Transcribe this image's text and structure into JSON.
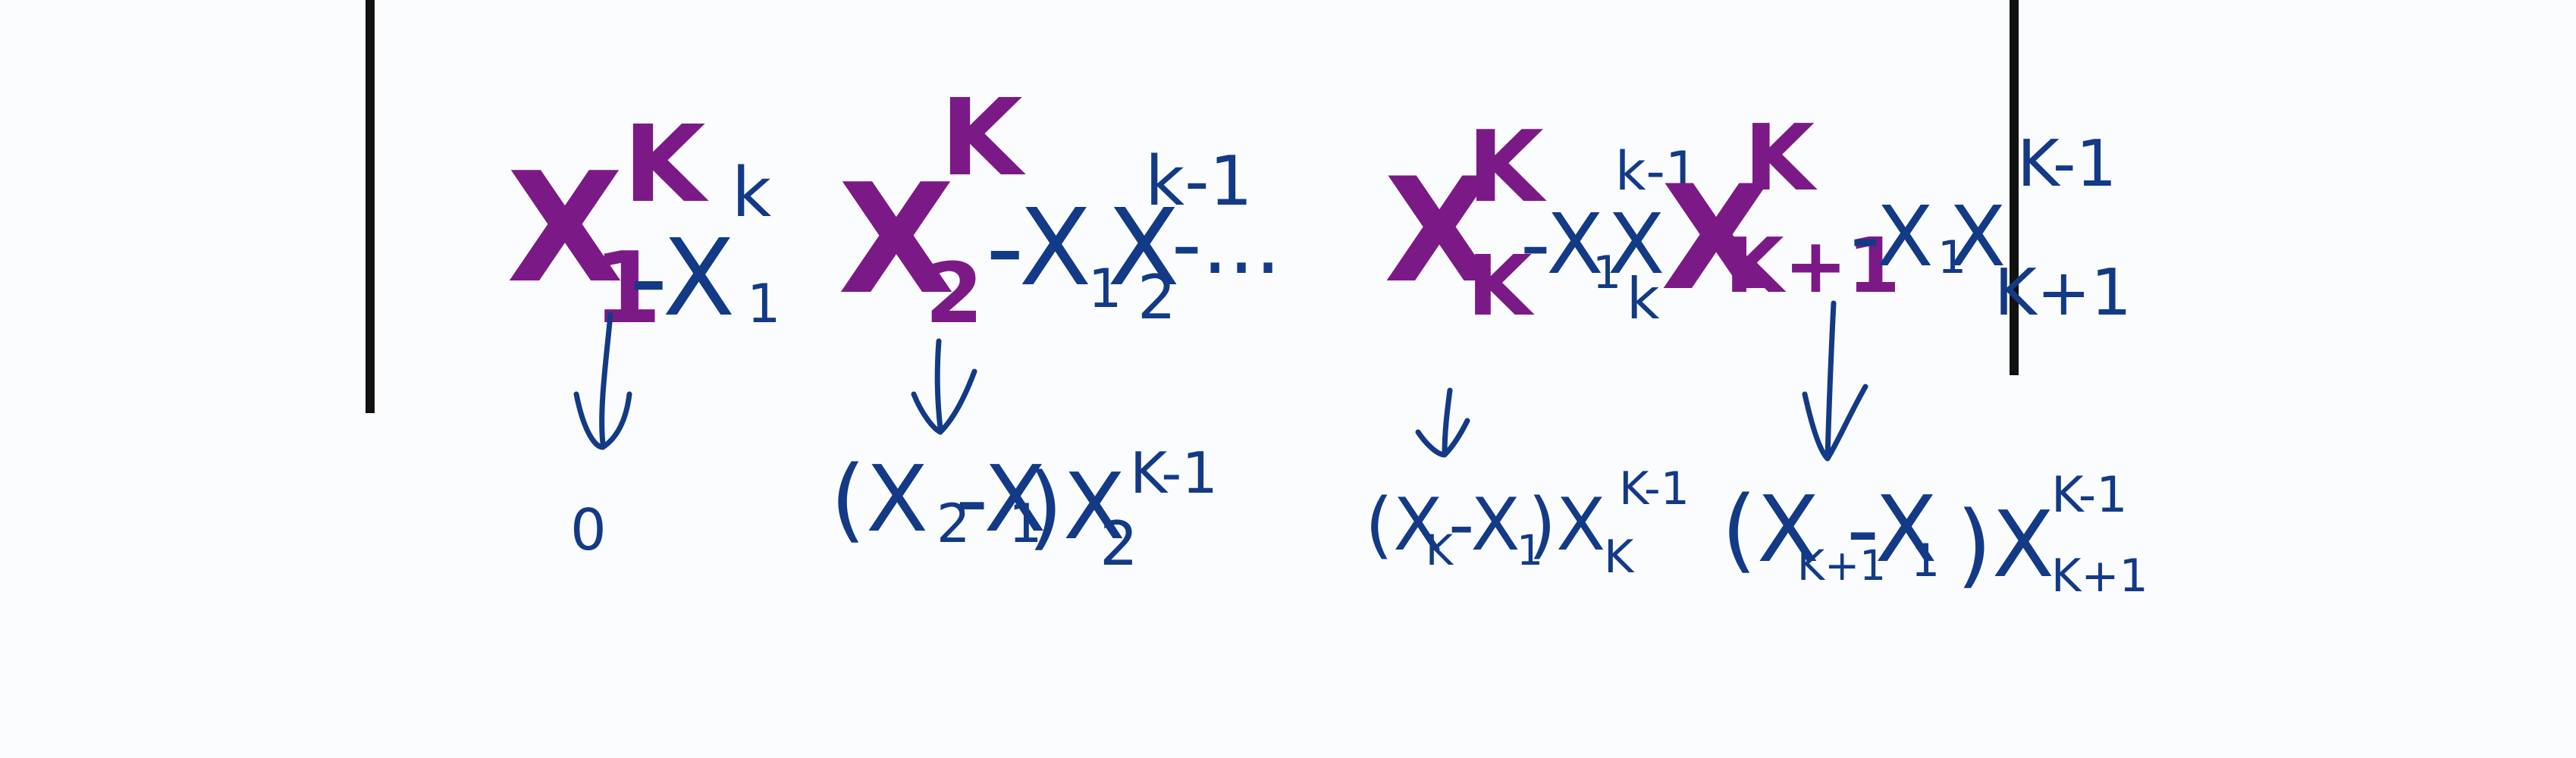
{
  "colors": {
    "background": "#fbfcfe",
    "purple_ink": "#7b1a86",
    "blue_ink": "#123a86",
    "rule": "#111111"
  },
  "expression": {
    "term1": {
      "base": "X",
      "sub": "1",
      "sup": "K"
    },
    "term1_rest": {
      "text": "-X",
      "sup": "k",
      "sub": "1"
    },
    "term2": {
      "base": "X",
      "sub": "2",
      "sup": "K"
    },
    "term2_rest": {
      "text": "-X",
      "sub1": "1",
      "text2": "X",
      "sub2": "2",
      "sup": "k-1"
    },
    "ellipsis": "-...",
    "termk": {
      "base": "X",
      "sub": "K",
      "sup": "K"
    },
    "termk_rest": {
      "text": "-X",
      "sub1": "1",
      "text2": "X",
      "sub2": "k",
      "sup": "k-1"
    },
    "termk1": {
      "base": "X",
      "sub": "K+1",
      "sup": "K"
    },
    "termk1_rest": {
      "text": "-X",
      "sub1": "1",
      "text2": "X",
      "sub2": "K+1",
      "sup": "K-1"
    }
  },
  "results": {
    "r1": "0",
    "r2": {
      "open": "(X",
      "a_sub": "2",
      "mid": "-X",
      "b_sub": "1",
      "close": ")X",
      "c_sub": "2",
      "sup": "K-1"
    },
    "rk": {
      "open": "(X",
      "a_sub": "K",
      "mid": "-X",
      "b_sub": "1",
      "close": ")X",
      "c_sub": "K",
      "sup": "K-1"
    },
    "rk1": {
      "open": "(X",
      "a_sub": "K+1",
      "mid": "-X",
      "b_sub": "1",
      "close": ")X",
      "c_sub": "K+1",
      "sup": "K-1"
    }
  }
}
